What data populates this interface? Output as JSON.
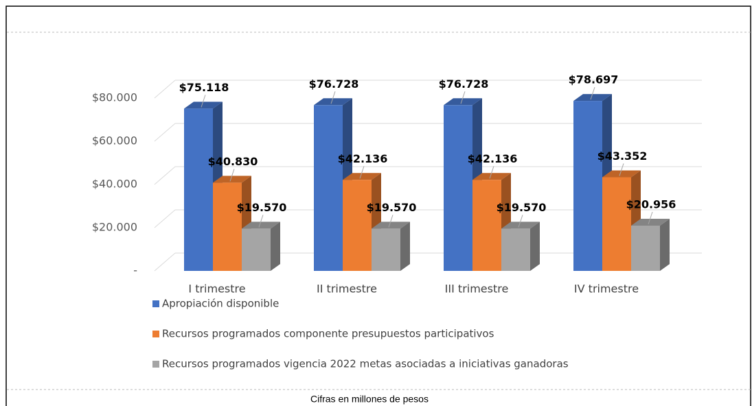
{
  "chart_data": {
    "type": "bar3d",
    "categories": [
      "I trimestre",
      "II trimestre",
      "III trimestre",
      "IV trimestre"
    ],
    "series": [
      {
        "name": "Apropiación disponible",
        "color": "#4472c4",
        "values": [
          75118,
          76728,
          76728,
          78697
        ],
        "value_labels": [
          "$75.118",
          "$76.728",
          "$76.728",
          "$78.697"
        ]
      },
      {
        "name": "Recursos programados componente presupuestos participativos",
        "color": "#ed7d31",
        "values": [
          40830,
          42136,
          42136,
          43352
        ],
        "value_labels": [
          "$40.830",
          "$42.136",
          "$42.136",
          "$43.352"
        ]
      },
      {
        "name": "Recursos programados vigencia 2022 metas asociadas a iniciativas ganadoras",
        "color": "#a5a5a5",
        "values": [
          19570,
          19570,
          19570,
          20956
        ],
        "value_labels": [
          "$19.570",
          "$19.570",
          "$19.570",
          "$20.956"
        ]
      }
    ],
    "ylim": [
      0,
      80000
    ],
    "yticks": [
      {
        "value": 0,
        "label": "-"
      },
      {
        "value": 20000,
        "label": "$20.000"
      },
      {
        "value": 40000,
        "label": "$40.000"
      },
      {
        "value": 60000,
        "label": "$60.000"
      },
      {
        "value": 80000,
        "label": "$80.000"
      }
    ],
    "grid": true,
    "legend": "bottom-left",
    "note": "Cifras en millones de pesos"
  }
}
